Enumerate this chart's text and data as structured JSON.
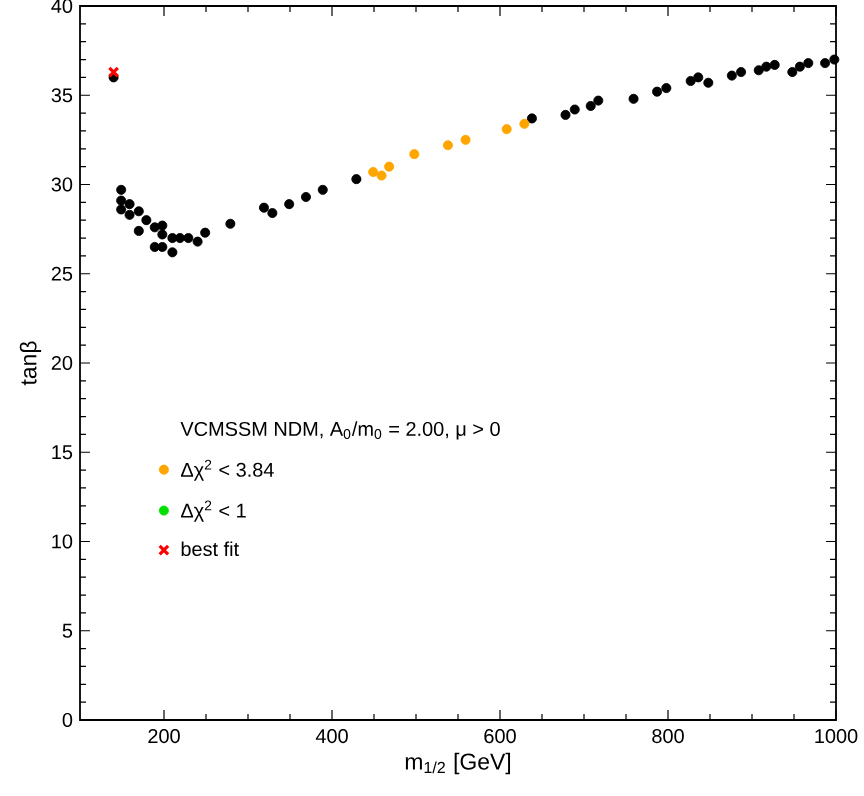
{
  "chart_data": {
    "type": "scatter",
    "xlabel": "m$_{1/2}$ [GeV]",
    "ylabel": "tanβ",
    "legend_title": "VCMSSM NDM, A$_{0}$/m$_{0}$ = 2.00, μ > 0",
    "xlim": [
      100,
      1000
    ],
    "ylim": [
      0,
      40
    ],
    "xticks": [
      200,
      400,
      600,
      800,
      1000
    ],
    "yticks": [
      0,
      5,
      10,
      15,
      20,
      25,
      30,
      35,
      40
    ],
    "grid": false,
    "legend": "left",
    "series": [
      {
        "color": "#000000",
        "marker": "circle",
        "x": [
          140,
          149,
          149,
          149,
          159,
          159,
          170,
          170,
          179,
          189,
          189,
          198,
          198,
          198,
          210,
          210,
          219,
          229,
          240,
          249,
          279,
          319,
          329,
          349,
          369,
          389,
          429,
          638,
          678,
          689,
          708,
          717,
          759,
          787,
          798,
          827,
          836,
          848,
          876,
          887,
          908,
          917,
          927,
          948,
          957,
          967,
          987,
          998
        ],
        "values": [
          36.0,
          29.7,
          29.1,
          28.6,
          28.9,
          28.3,
          28.5,
          27.4,
          28.0,
          27.6,
          26.5,
          27.7,
          27.2,
          26.5,
          27.0,
          26.2,
          27.0,
          27.0,
          26.8,
          27.3,
          27.8,
          28.7,
          28.4,
          28.9,
          29.3,
          29.7,
          30.3,
          33.7,
          33.9,
          34.2,
          34.4,
          34.7,
          34.8,
          35.2,
          35.4,
          35.8,
          36.0,
          35.7,
          36.1,
          36.3,
          36.4,
          36.6,
          36.7,
          36.3,
          36.6,
          36.8,
          36.8,
          37.0
        ]
      },
      {
        "name": "Δχ$^{2}$ < 3.84",
        "color": "#ffa500",
        "marker": "circle",
        "x": [
          449,
          459,
          468,
          498,
          538,
          559,
          608,
          629
        ],
        "values": [
          30.7,
          30.5,
          31.0,
          31.7,
          32.2,
          32.5,
          33.1,
          33.4
        ]
      },
      {
        "name": "Δχ$^{2}$ < 1",
        "color": "#00e000",
        "marker": "circle"
      },
      {
        "name": "best fit",
        "color": "#ff0000",
        "marker": "cross",
        "x": [
          140
        ],
        "values": [
          36.3
        ]
      }
    ]
  }
}
